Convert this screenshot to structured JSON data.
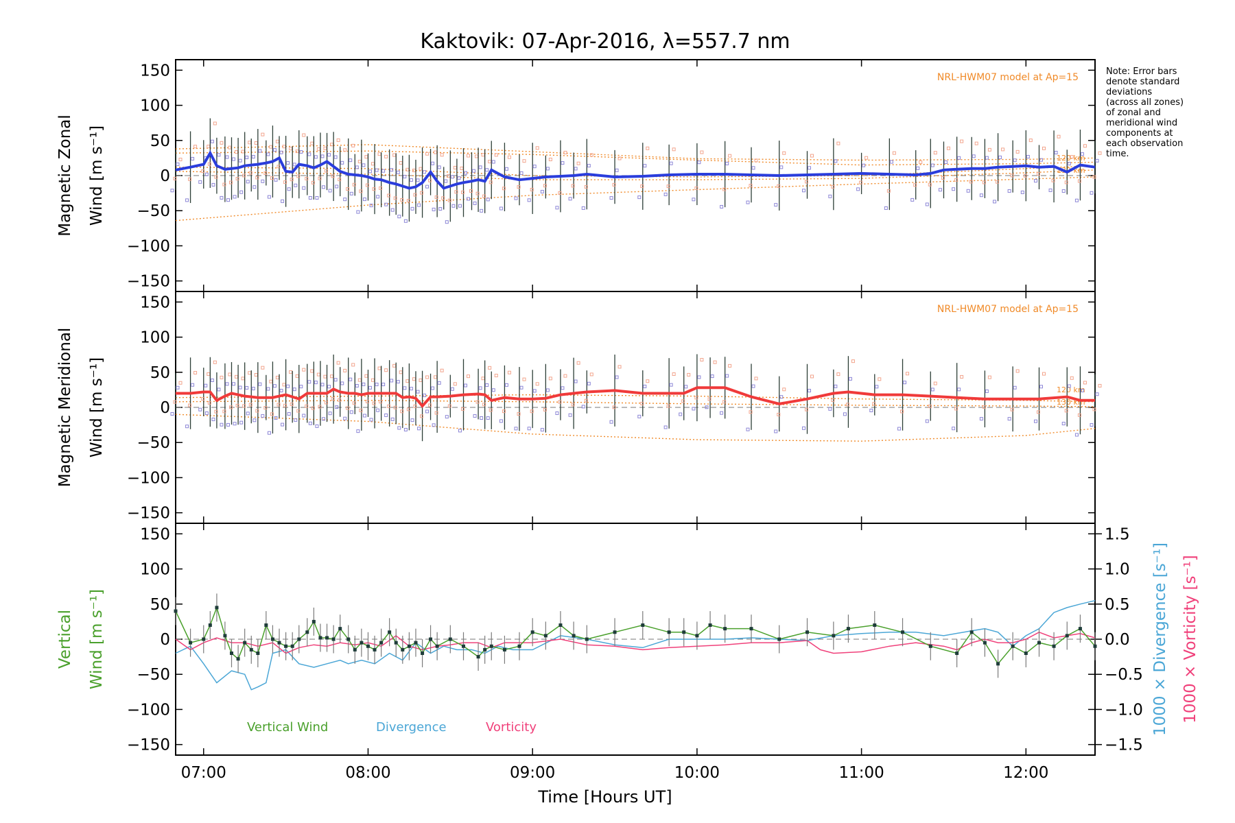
{
  "chart_data": {
    "type": "line",
    "title": "Kaktovik: 07-Apr-2016, λ=557.7 nm",
    "xlabel": "Time [Hours UT]",
    "xlim_hours": [
      6.83,
      12.42
    ],
    "xticks": [
      "07:00",
      "08:00",
      "09:00",
      "10:00",
      "11:00",
      "12:00"
    ],
    "xtick_values": [
      7,
      8,
      9,
      10,
      11,
      12
    ],
    "note": "Note: Error bars denote standard deviations (across all zones) of zonal and meridional wind components at each observation time.",
    "note_lines": [
      "Note: Error bars",
      "denote standard",
      "deviations",
      "(across all zones)",
      "of zonal and",
      "meridional wind",
      "components at",
      "each observation",
      "time."
    ],
    "panels": [
      {
        "id": "zonal",
        "ylabel_line1": "Magnetic Zonal",
        "ylabel_line2": "Wind [m s⁻¹]",
        "ylim": [
          -165,
          165
        ],
        "yticks": [
          -150,
          -100,
          -50,
          0,
          50,
          100,
          150
        ],
        "model_label": "NRL-HWM07 model at Ap=15",
        "model_alt_labels": [
          "120 km",
          "130 km"
        ],
        "colors": {
          "line": "#2a3ddc",
          "dots_a": "#8c86d6",
          "dots_b": "#f2a48c",
          "model": "#f08a28",
          "error": "#2c3e36"
        },
        "series": [
          {
            "name": "Magnetic Zonal Wind",
            "x": [
              6.83,
              6.92,
              7.0,
              7.04,
              7.08,
              7.13,
              7.17,
              7.21,
              7.25,
              7.29,
              7.33,
              7.38,
              7.42,
              7.46,
              7.5,
              7.54,
              7.58,
              7.63,
              7.67,
              7.71,
              7.75,
              7.79,
              7.83,
              7.88,
              7.92,
              7.96,
              8.0,
              8.04,
              8.08,
              8.13,
              8.17,
              8.21,
              8.25,
              8.29,
              8.33,
              8.38,
              8.42,
              8.46,
              8.5,
              8.54,
              8.58,
              8.63,
              8.67,
              8.71,
              8.75,
              8.83,
              8.92,
              9.0,
              9.08,
              9.17,
              9.25,
              9.33,
              9.5,
              9.67,
              9.83,
              10.0,
              10.17,
              10.33,
              10.5,
              10.67,
              10.83,
              11.0,
              11.17,
              11.33,
              11.42,
              11.5,
              11.58,
              11.67,
              11.75,
              11.83,
              11.92,
              12.0,
              12.08,
              12.17,
              12.25,
              12.33,
              12.42
            ],
            "values": [
              8,
              12,
              16,
              32,
              14,
              9,
              10,
              11,
              14,
              15,
              16,
              18,
              20,
              25,
              6,
              5,
              16,
              14,
              11,
              15,
              20,
              13,
              6,
              2,
              1,
              0,
              -2,
              -5,
              -6,
              -10,
              -12,
              -15,
              -18,
              -16,
              -10,
              5,
              -8,
              -18,
              -15,
              -12,
              -10,
              -8,
              -6,
              -8,
              8,
              -2,
              -6,
              -4,
              -2,
              -1,
              0,
              2,
              -2,
              -1,
              1,
              2,
              2,
              1,
              0,
              1,
              2,
              3,
              2,
              1,
              3,
              8,
              9,
              10,
              10,
              12,
              13,
              14,
              12,
              13,
              5,
              15,
              12
            ]
          }
        ],
        "model_curves": [
          {
            "name": "model-upper-a",
            "x": [
              6.83,
              8.0,
              9.0,
              10.0,
              11.0,
              12.0,
              12.42
            ],
            "values": [
              38,
              44,
              34,
              24,
              22,
              23,
              25
            ]
          },
          {
            "name": "model-upper-b",
            "x": [
              6.83,
              8.0,
              9.0,
              10.0,
              11.0,
              12.0,
              12.42
            ],
            "values": [
              32,
              35,
              30,
              22,
              15,
              17,
              19
            ]
          },
          {
            "name": "model-mid-a",
            "x": [
              6.83,
              8.0,
              9.0,
              10.0,
              11.0,
              12.0,
              12.42
            ],
            "values": [
              12,
              10,
              0,
              -2,
              0,
              10,
              14
            ]
          },
          {
            "name": "model-mid-b",
            "x": [
              6.83,
              8.0,
              9.0,
              10.0,
              11.0,
              12.0,
              12.42
            ],
            "values": [
              6,
              2,
              -6,
              -6,
              -4,
              4,
              8
            ]
          },
          {
            "name": "model-lower",
            "x": [
              6.83,
              8.0,
              9.0,
              10.0,
              11.0,
              12.0,
              12.42
            ],
            "values": [
              -64,
              -42,
              -28,
              -20,
              -12,
              -5,
              -2
            ]
          }
        ]
      },
      {
        "id": "meridional",
        "ylabel_line1": "Magnetic Meridional",
        "ylabel_line2": "Wind [m s⁻¹]",
        "ylim": [
          -165,
          165
        ],
        "yticks": [
          -150,
          -100,
          -50,
          0,
          50,
          100,
          150
        ],
        "model_label": "NRL-HWM07 model at Ap=15",
        "model_alt_labels": [
          "120 km",
          "130 km"
        ],
        "colors": {
          "line": "#f03a3a",
          "dots_a": "#8c86d6",
          "dots_b": "#f2a48c",
          "model": "#f08a28",
          "error": "#2c3e36"
        },
        "series": [
          {
            "name": "Magnetic Meridional Wind",
            "x": [
              6.83,
              6.92,
              7.0,
              7.04,
              7.08,
              7.13,
              7.17,
              7.21,
              7.25,
              7.29,
              7.33,
              7.38,
              7.42,
              7.46,
              7.5,
              7.54,
              7.58,
              7.63,
              7.67,
              7.71,
              7.75,
              7.79,
              7.83,
              7.88,
              7.92,
              7.96,
              8.0,
              8.04,
              8.08,
              8.13,
              8.17,
              8.21,
              8.25,
              8.29,
              8.33,
              8.38,
              8.42,
              8.5,
              8.58,
              8.67,
              8.71,
              8.75,
              8.83,
              8.92,
              9.0,
              9.08,
              9.17,
              9.25,
              9.33,
              9.5,
              9.67,
              9.83,
              9.92,
              10.0,
              10.08,
              10.17,
              10.33,
              10.5,
              10.67,
              10.83,
              10.92,
              11.08,
              11.25,
              11.42,
              11.58,
              11.75,
              11.92,
              12.08,
              12.25,
              12.33,
              12.42
            ],
            "values": [
              20,
              20,
              22,
              22,
              10,
              16,
              20,
              18,
              16,
              15,
              14,
              14,
              14,
              16,
              18,
              15,
              12,
              20,
              20,
              20,
              20,
              26,
              22,
              20,
              20,
              18,
              20,
              20,
              20,
              20,
              20,
              14,
              15,
              13,
              2,
              15,
              15,
              16,
              18,
              19,
              18,
              10,
              14,
              12,
              12,
              13,
              18,
              20,
              22,
              24,
              20,
              20,
              20,
              28,
              28,
              28,
              15,
              5,
              12,
              20,
              22,
              18,
              18,
              16,
              14,
              12,
              12,
              12,
              15,
              10,
              10
            ]
          }
        ],
        "model_curves": [
          {
            "name": "model-upper-a",
            "x": [
              6.83,
              8.0,
              9.0,
              10.0,
              11.0,
              12.0,
              12.42
            ],
            "values": [
              14,
              16,
              18,
              16,
              12,
              10,
              8
            ]
          },
          {
            "name": "model-upper-b",
            "x": [
              6.83,
              8.0,
              9.0,
              10.0,
              11.0,
              12.0,
              12.42
            ],
            "values": [
              8,
              10,
              8,
              5,
              3,
              2,
              1
            ]
          },
          {
            "name": "model-lower",
            "x": [
              6.83,
              8.0,
              9.0,
              10.0,
              11.0,
              12.0,
              12.42
            ],
            "values": [
              -10,
              -20,
              -38,
              -46,
              -48,
              -40,
              -30
            ]
          }
        ]
      },
      {
        "id": "vertical",
        "ylabel_line1": "Vertical",
        "ylabel_line2": "Wind [m s⁻¹]",
        "ylim": [
          -165,
          165
        ],
        "yticks": [
          -150,
          -100,
          -50,
          0,
          50,
          100,
          150
        ],
        "y2lim": [
          -1.65,
          1.65
        ],
        "y2ticks": [
          -1.5,
          -1.0,
          -0.5,
          0.0,
          0.5,
          1.0,
          1.5
        ],
        "y2tick_labels": [
          "−1.5",
          "−1.0",
          "−0.5",
          "0.0",
          "0.5",
          "1.0",
          "1.5"
        ],
        "y2label_divergence": "1000 × Divergence [s⁻¹]",
        "y2label_vorticity": "1000 × Vorticity [s⁻¹]",
        "legend": [
          "Vertical Wind",
          "Divergence",
          "Vorticity"
        ],
        "colors": {
          "vertical": "#4aa02c",
          "divergence": "#4aa6d6",
          "vorticity": "#f0407a",
          "error": "#7a7a7a"
        },
        "series": [
          {
            "name": "Vertical Wind",
            "x": [
              6.83,
              6.92,
              7.0,
              7.04,
              7.08,
              7.13,
              7.17,
              7.21,
              7.25,
              7.29,
              7.33,
              7.38,
              7.42,
              7.46,
              7.5,
              7.54,
              7.58,
              7.63,
              7.67,
              7.71,
              7.75,
              7.79,
              7.83,
              7.88,
              7.92,
              7.96,
              8.0,
              8.04,
              8.08,
              8.13,
              8.17,
              8.21,
              8.25,
              8.29,
              8.33,
              8.38,
              8.42,
              8.5,
              8.58,
              8.67,
              8.71,
              8.75,
              8.83,
              8.92,
              9.0,
              9.08,
              9.17,
              9.25,
              9.33,
              9.5,
              9.67,
              9.83,
              9.92,
              10.0,
              10.08,
              10.17,
              10.33,
              10.5,
              10.67,
              10.83,
              10.92,
              11.08,
              11.25,
              11.42,
              11.58,
              11.67,
              11.75,
              11.83,
              11.92,
              12.0,
              12.08,
              12.17,
              12.25,
              12.33,
              12.42
            ],
            "values": [
              40,
              -5,
              0,
              20,
              45,
              5,
              -20,
              -28,
              -5,
              -15,
              -20,
              20,
              0,
              -5,
              -10,
              -10,
              0,
              10,
              25,
              2,
              2,
              0,
              15,
              0,
              -15,
              -5,
              -10,
              -15,
              -5,
              10,
              -5,
              -15,
              -10,
              -5,
              -20,
              0,
              -10,
              0,
              -10,
              -25,
              -15,
              -10,
              -15,
              -10,
              10,
              5,
              20,
              5,
              0,
              10,
              20,
              10,
              10,
              5,
              20,
              15,
              15,
              0,
              10,
              5,
              15,
              20,
              10,
              -10,
              -20,
              10,
              -5,
              -35,
              -10,
              -20,
              -5,
              -10,
              5,
              15,
              -10
            ]
          },
          {
            "name": "Divergence",
            "x": [
              6.83,
              6.92,
              7.0,
              7.08,
              7.17,
              7.25,
              7.29,
              7.33,
              7.38,
              7.42,
              7.5,
              7.58,
              7.67,
              7.75,
              7.83,
              7.88,
              7.96,
              8.04,
              8.13,
              8.21,
              8.29,
              8.38,
              8.46,
              8.54,
              8.63,
              8.71,
              8.79,
              8.88,
              9.0,
              9.17,
              9.33,
              9.5,
              9.67,
              9.83,
              10.0,
              10.17,
              10.33,
              10.5,
              10.67,
              10.83,
              11.0,
              11.17,
              11.33,
              11.5,
              11.67,
              11.75,
              11.83,
              11.92,
              12.0,
              12.08,
              12.17,
              12.25,
              12.33,
              12.42
            ],
            "values": [
              -0.2,
              -0.1,
              -0.35,
              -0.62,
              -0.45,
              -0.5,
              -0.72,
              -0.68,
              -0.62,
              -0.2,
              -0.15,
              -0.35,
              -0.4,
              -0.35,
              -0.3,
              -0.35,
              -0.3,
              -0.35,
              -0.2,
              -0.3,
              -0.05,
              -0.2,
              -0.1,
              -0.15,
              -0.15,
              -0.2,
              -0.1,
              -0.15,
              -0.15,
              0.05,
              0.0,
              -0.08,
              -0.12,
              0.0,
              0.0,
              0.0,
              0.02,
              0.0,
              -0.02,
              0.05,
              0.08,
              0.1,
              0.1,
              0.05,
              0.12,
              0.15,
              0.1,
              -0.1,
              0.05,
              0.15,
              0.38,
              0.45,
              0.5,
              0.55
            ]
          },
          {
            "name": "Vorticity",
            "x": [
              6.83,
              6.92,
              7.0,
              7.08,
              7.17,
              7.25,
              7.33,
              7.42,
              7.5,
              7.58,
              7.67,
              7.75,
              7.83,
              7.92,
              8.0,
              8.08,
              8.17,
              8.25,
              8.33,
              8.42,
              8.5,
              8.58,
              8.67,
              8.75,
              8.83,
              9.0,
              9.17,
              9.33,
              9.5,
              9.67,
              9.83,
              10.0,
              10.17,
              10.33,
              10.5,
              10.67,
              10.75,
              10.83,
              11.0,
              11.17,
              11.33,
              11.5,
              11.58,
              11.67,
              11.75,
              11.83,
              11.92,
              12.0,
              12.08,
              12.17,
              12.25,
              12.33,
              12.42
            ],
            "values": [
              0.0,
              -0.15,
              -0.05,
              0.02,
              -0.05,
              -0.05,
              -0.1,
              -0.05,
              -0.2,
              -0.12,
              -0.08,
              -0.1,
              -0.05,
              -0.08,
              -0.05,
              -0.1,
              0.05,
              -0.1,
              -0.15,
              -0.1,
              -0.08,
              -0.05,
              -0.05,
              -0.12,
              -0.05,
              -0.05,
              0.0,
              -0.08,
              -0.1,
              -0.15,
              -0.12,
              -0.1,
              -0.08,
              -0.05,
              -0.05,
              -0.02,
              -0.15,
              -0.2,
              -0.18,
              -0.1,
              -0.05,
              -0.1,
              -0.15,
              -0.05,
              0.0,
              -0.05,
              -0.05,
              0.0,
              0.1,
              0.02,
              0.05,
              0.08,
              0.02
            ]
          }
        ]
      }
    ]
  }
}
